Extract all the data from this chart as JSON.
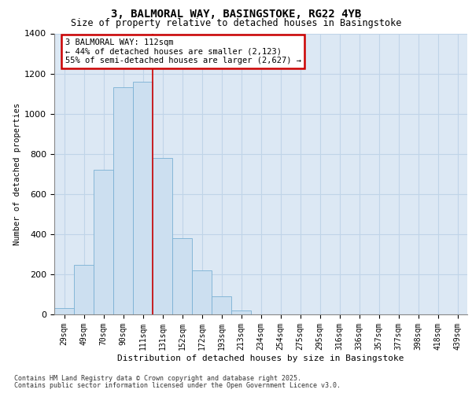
{
  "title_line1": "3, BALMORAL WAY, BASINGSTOKE, RG22 4YB",
  "title_line2": "Size of property relative to detached houses in Basingstoke",
  "xlabel": "Distribution of detached houses by size in Basingstoke",
  "ylabel": "Number of detached properties",
  "categories": [
    "29sqm",
    "49sqm",
    "70sqm",
    "90sqm",
    "111sqm",
    "131sqm",
    "152sqm",
    "172sqm",
    "193sqm",
    "213sqm",
    "234sqm",
    "254sqm",
    "275sqm",
    "295sqm",
    "316sqm",
    "336sqm",
    "357sqm",
    "377sqm",
    "398sqm",
    "418sqm",
    "439sqm"
  ],
  "values": [
    30,
    245,
    720,
    1130,
    1160,
    780,
    380,
    220,
    90,
    20,
    0,
    0,
    0,
    0,
    0,
    0,
    0,
    0,
    0,
    0,
    0
  ],
  "bar_color": "#ccdff0",
  "bar_edge_color": "#7ab0d4",
  "property_line_x": 4.5,
  "property_line_color": "#cc0000",
  "ylim_max": 1400,
  "yticks": [
    0,
    200,
    400,
    600,
    800,
    1000,
    1200,
    1400
  ],
  "annotation_text": "3 BALMORAL WAY: 112sqm\n← 44% of detached houses are smaller (2,123)\n55% of semi-detached houses are larger (2,627) →",
  "annotation_box_facecolor": "#ffffff",
  "annotation_box_edgecolor": "#cc0000",
  "grid_color": "#c0d4e8",
  "plot_bg_color": "#dce8f4",
  "footer_line1": "Contains HM Land Registry data © Crown copyright and database right 2025.",
  "footer_line2": "Contains public sector information licensed under the Open Government Licence v3.0."
}
